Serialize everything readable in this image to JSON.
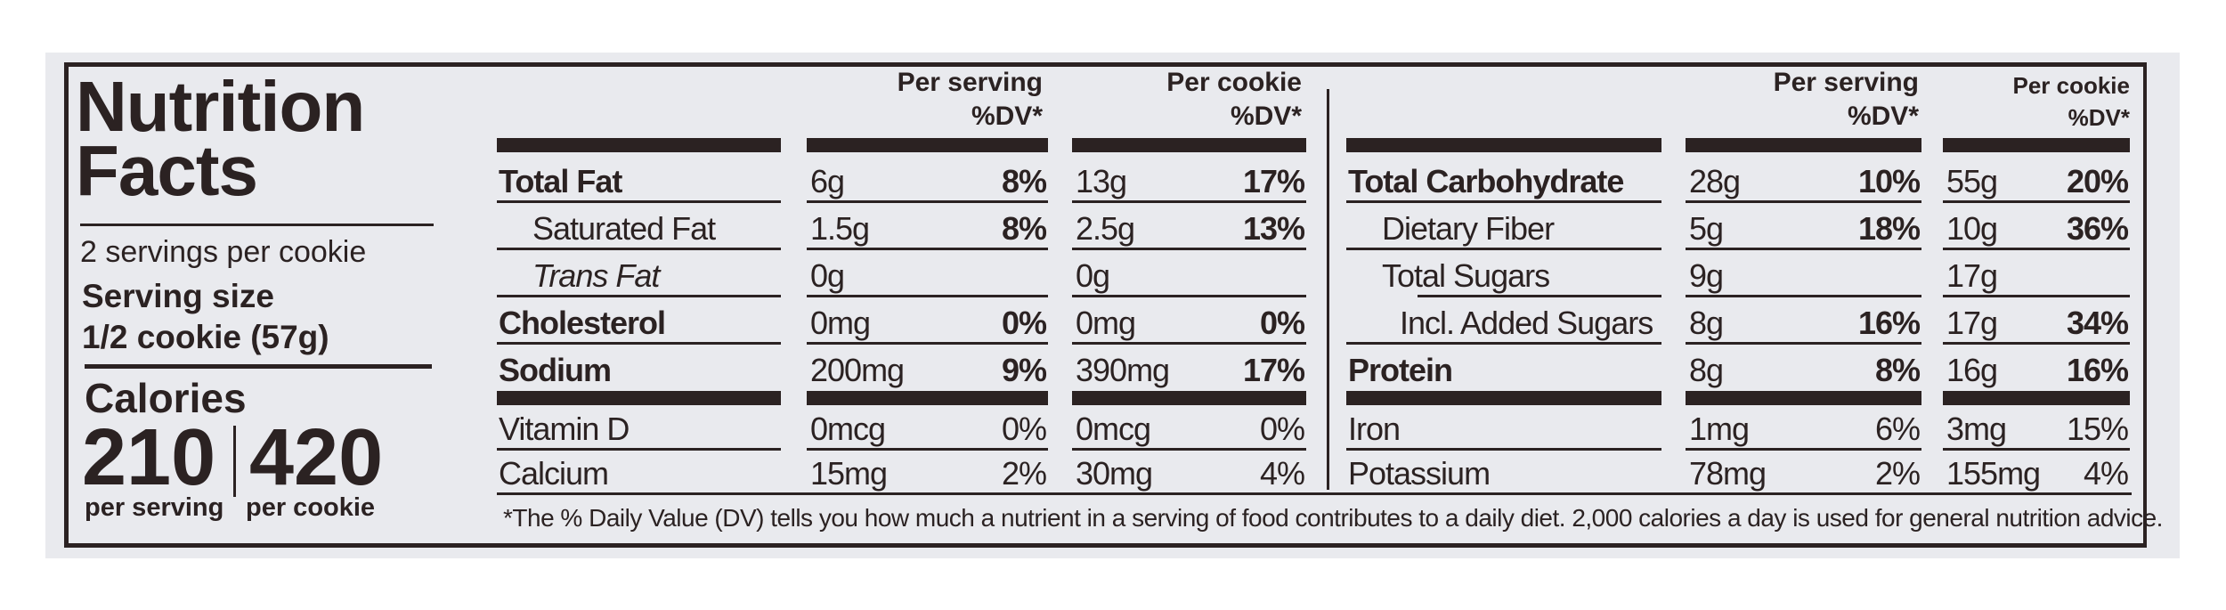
{
  "label": {
    "title_line1": "Nutrition",
    "title_line2": "Facts",
    "servings_per_container": "2 servings per cookie",
    "serving_size_label": "Serving size",
    "serving_size_value": "1/2 cookie (57g)",
    "calories_label": "Calories",
    "calories_per_serving": "210",
    "calories_per_cookie": "420",
    "per_serving_caption": "per serving",
    "per_cookie_caption": "per cookie"
  },
  "headers": {
    "left_serving": [
      "Per serving",
      "%DV*"
    ],
    "left_cookie": [
      "Per cookie",
      "%DV*"
    ],
    "right_serving": [
      "Per serving",
      "%DV*"
    ],
    "right_cookie": [
      "Per cookie",
      "%DV*"
    ]
  },
  "left_rows": [
    {
      "name": "Total Fat",
      "style": "bold",
      "serving_amount": "6g",
      "serving_dv": "8%",
      "cookie_amount": "13g",
      "cookie_dv": "17%"
    },
    {
      "name": "Saturated Fat",
      "style": "indent",
      "serving_amount": "1.5g",
      "serving_dv": "8%",
      "cookie_amount": "2.5g",
      "cookie_dv": "13%"
    },
    {
      "name": "Trans Fat",
      "style": "italic-indent",
      "serving_amount": "0g",
      "serving_dv": "",
      "cookie_amount": "0g",
      "cookie_dv": ""
    },
    {
      "name": "Cholesterol",
      "style": "bold",
      "serving_amount": "0mg",
      "serving_dv": "0%",
      "cookie_amount": "0mg",
      "cookie_dv": "0%"
    },
    {
      "name": "Sodium",
      "style": "bold",
      "serving_amount": "200mg",
      "serving_dv": "9%",
      "cookie_amount": "390mg",
      "cookie_dv": "17%"
    },
    {
      "name": "Vitamin D",
      "style": "plain",
      "serving_amount": "0mcg",
      "serving_dv": "0%",
      "cookie_amount": "0mcg",
      "cookie_dv": "0%"
    },
    {
      "name": "Calcium",
      "style": "plain",
      "serving_amount": "15mg",
      "serving_dv": "2%",
      "cookie_amount": "30mg",
      "cookie_dv": "4%"
    }
  ],
  "right_rows": [
    {
      "name": "Total Carbohydrate",
      "style": "bold",
      "serving_amount": "28g",
      "serving_dv": "10%",
      "cookie_amount": "55g",
      "cookie_dv": "20%"
    },
    {
      "name": "Dietary Fiber",
      "style": "indent",
      "serving_amount": "5g",
      "serving_dv": "18%",
      "cookie_amount": "10g",
      "cookie_dv": "36%"
    },
    {
      "name": "Total Sugars",
      "style": "indent",
      "serving_amount": "9g",
      "serving_dv": "",
      "cookie_amount": "17g",
      "cookie_dv": ""
    },
    {
      "name": "Incl. Added Sugars",
      "style": "indent2",
      "serving_amount": "8g",
      "serving_dv": "16%",
      "cookie_amount": "17g",
      "cookie_dv": "34%"
    },
    {
      "name": "Protein",
      "style": "bold",
      "serving_amount": "8g",
      "serving_dv": "8%",
      "cookie_amount": "16g",
      "cookie_dv": "16%"
    },
    {
      "name": "Iron",
      "style": "plain",
      "serving_amount": "1mg",
      "serving_dv": "6%",
      "cookie_amount": "3mg",
      "cookie_dv": "15%"
    },
    {
      "name": "Potassium",
      "style": "plain",
      "serving_amount": "78mg",
      "serving_dv": "2%",
      "cookie_amount": "155mg",
      "cookie_dv": "4%"
    }
  ],
  "footnote": "*The % Daily Value (DV) tells you how much a nutrient in a serving of food contributes to a daily diet. 2,000 calories a day is used for general nutrition advice.",
  "colors": {
    "ink": "#2b2222",
    "panel": "#e9eaee"
  }
}
